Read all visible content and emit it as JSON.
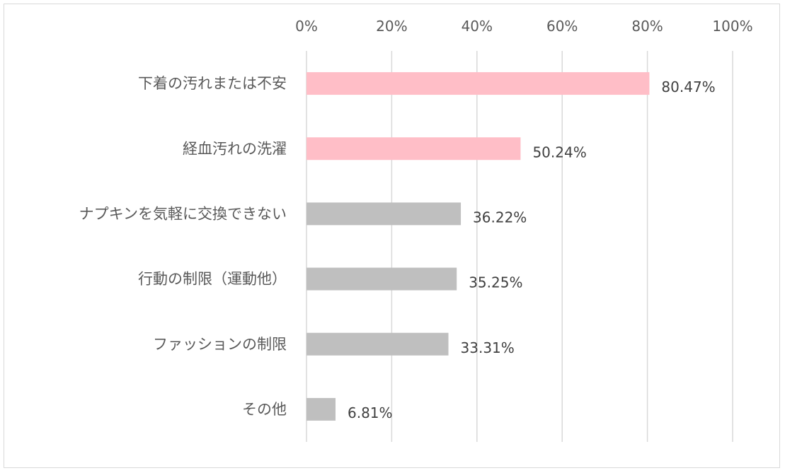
{
  "chart_data": {
    "type": "bar",
    "orientation": "horizontal",
    "categories": [
      "下着の汚れまたは不安",
      "経血汚れの洗濯",
      "ナプキンを気軽に交換できない",
      "行動の制限（運動他）",
      "ファッションの制限",
      "その他"
    ],
    "values": [
      80.47,
      50.24,
      36.22,
      35.25,
      33.31,
      6.81
    ],
    "data_labels": [
      "80.47%",
      "50.24%",
      "36.22%",
      "35.25%",
      "33.31%",
      "6.81%"
    ],
    "bar_colors": [
      "#ffbec7",
      "#ffbec7",
      "#bfbfbf",
      "#bfbfbf",
      "#bfbfbf",
      "#bfbfbf"
    ],
    "xlim": [
      0,
      100
    ],
    "xticks": [
      0,
      20,
      40,
      60,
      80,
      100
    ],
    "xtick_labels": [
      "0%",
      "20%",
      "40%",
      "60%",
      "80%",
      "100%"
    ],
    "axis_position": "top",
    "grid": true,
    "grid_color": "#d9d9d9",
    "title": "",
    "xlabel": "",
    "ylabel": ""
  }
}
